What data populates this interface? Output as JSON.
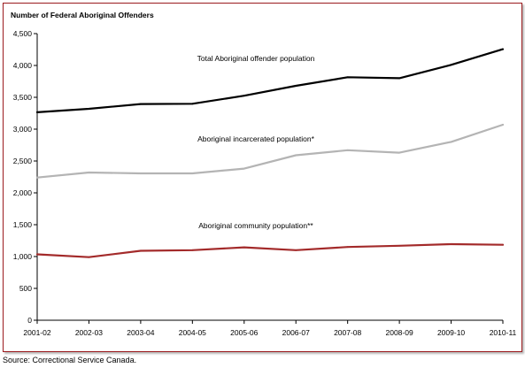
{
  "chart_data": {
    "type": "line",
    "title": "Number of Federal Aboriginal Offenders",
    "xlabel": "",
    "ylabel": "",
    "categories": [
      "2001-02",
      "2002-03",
      "2003-04",
      "2004-05",
      "2005-06",
      "2006-07",
      "2007-08",
      "2008-09",
      "2009-10",
      "2010-11"
    ],
    "ylim": [
      0,
      4500
    ],
    "yticks": [
      0,
      500,
      1000,
      1500,
      2000,
      2500,
      3000,
      3500,
      4000,
      4500
    ],
    "ytick_labels": [
      "0",
      "500",
      "1,000",
      "1,500",
      "2,000",
      "2,500",
      "3,000",
      "3,500",
      "4,000",
      "4,500"
    ],
    "grid": false,
    "legend": "none",
    "series": [
      {
        "name": "Total Aboriginal offender population",
        "color": "#000000",
        "values": [
          3265,
          3320,
          3395,
          3398,
          3525,
          3680,
          3815,
          3800,
          4010,
          4255
        ]
      },
      {
        "name": "Aboriginal incarcerated population*",
        "color": "#b4b4b4",
        "values": [
          2240,
          2320,
          2305,
          2305,
          2380,
          2590,
          2670,
          2630,
          2800,
          3070
        ]
      },
      {
        "name": "Aboriginal community population**",
        "color": "#a32a2a",
        "values": [
          1035,
          990,
          1090,
          1100,
          1145,
          1100,
          1150,
          1170,
          1195,
          1185
        ]
      }
    ]
  },
  "source_note": "Source:  Correctional Service Canada."
}
